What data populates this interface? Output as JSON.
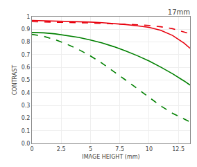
{
  "chart_data": {
    "type": "line",
    "title": "17mm",
    "x_label": "IMAGE HEIGHT (mm)",
    "y_label": "CONTRAST",
    "x": [
      0,
      1,
      2,
      3,
      4,
      5,
      6,
      7,
      8,
      9,
      10,
      11,
      12,
      13,
      13.5
    ],
    "series": [
      {
        "color": "#e8000d",
        "line_style": "solid",
        "values": [
          0.97,
          0.968,
          0.966,
          0.963,
          0.96,
          0.957,
          0.952,
          0.946,
          0.938,
          0.928,
          0.915,
          0.892,
          0.852,
          0.79,
          0.75
        ]
      },
      {
        "color": "#e8000d",
        "line_style": "dashed",
        "values": [
          0.96,
          0.959,
          0.957,
          0.955,
          0.952,
          0.95,
          0.947,
          0.943,
          0.94,
          0.936,
          0.93,
          0.92,
          0.905,
          0.88,
          0.865
        ]
      },
      {
        "color": "#008000",
        "line_style": "solid",
        "values": [
          0.875,
          0.872,
          0.864,
          0.852,
          0.836,
          0.816,
          0.792,
          0.763,
          0.73,
          0.692,
          0.65,
          0.602,
          0.55,
          0.492,
          0.46
        ]
      },
      {
        "color": "#008000",
        "line_style": "dashed",
        "values": [
          0.86,
          0.845,
          0.818,
          0.782,
          0.74,
          0.69,
          0.632,
          0.568,
          0.5,
          0.432,
          0.363,
          0.296,
          0.238,
          0.19,
          0.17
        ]
      }
    ],
    "xlim": [
      0,
      13.5
    ],
    "ylim": [
      0,
      1.0
    ],
    "xticks": [
      0,
      2.5,
      5,
      7.5,
      10,
      12.5
    ],
    "yticks": [
      {
        "value": 0,
        "label": "0.0"
      },
      0.1,
      0.2,
      0.3,
      0.4,
      0.5,
      0.6,
      0.7,
      0.8,
      0.9,
      1
    ],
    "grid": true
  }
}
